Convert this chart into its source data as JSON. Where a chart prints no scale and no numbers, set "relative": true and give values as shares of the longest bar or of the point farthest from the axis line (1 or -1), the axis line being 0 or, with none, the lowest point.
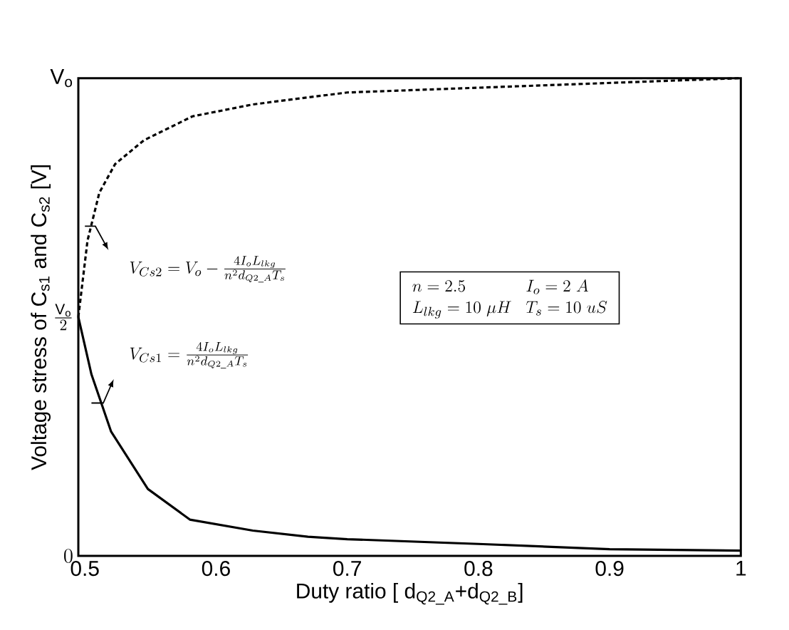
{
  "chart_data": {
    "type": "line",
    "relative": true,
    "xlabel": "Duty ratio [ d$_{Q2_A}$+d$_{Q2_B}$]",
    "ylabel": "Voltage stress of C$_{s1}$ and C$_{s2}$ [V]",
    "xlim": [
      0.495,
      1.0
    ],
    "xticks": [
      0.5,
      0.6,
      0.7,
      0.8,
      0.9,
      {
        "value": 1.0,
        "label": "1"
      }
    ],
    "series": [
      {
        "color": "#000000",
        "line_style": "dashed",
        "x": [
          0.495,
          0.502,
          0.511,
          0.523,
          0.545,
          0.582,
          0.628,
          0.671,
          0.7,
          0.8,
          0.9,
          1.0
        ],
        "values": [
          0.5,
          0.66,
          0.76,
          0.82,
          0.87,
          0.92,
          0.945,
          0.96,
          0.97,
          0.98,
          0.99,
          1.0
        ]
      },
      {
        "color": "#000000",
        "line_style": "solid",
        "x": [
          0.495,
          0.505,
          0.52,
          0.548,
          0.58,
          0.628,
          0.67,
          0.7,
          0.8,
          0.9,
          1.0
        ],
        "values": [
          0.5,
          0.38,
          0.26,
          0.14,
          0.076,
          0.053,
          0.04,
          0.035,
          0.025,
          0.014,
          0.011
        ]
      }
    ],
    "annotations": [
      "V_{Cs2} = V_o - \\frac{4I_oL_{lkg}}{n^2 d_{Q2\\_A} T_s}",
      "V_{Cs1} = \\frac{4I_oL_{lkg}}{n^2 d_{Q2\\_A} T_s}",
      "\\begin{array}{ll} n = 2.5 & I_o = 2\\ A \\\\ L_{lkg} = 10\\ \\mu H & T_s = 10\\ uS \\end{array}",
      "\\mathrm{V_o}",
      "\\frac{\\mathrm{V_o}}{2}",
      "0"
    ],
    "grid": false
  }
}
